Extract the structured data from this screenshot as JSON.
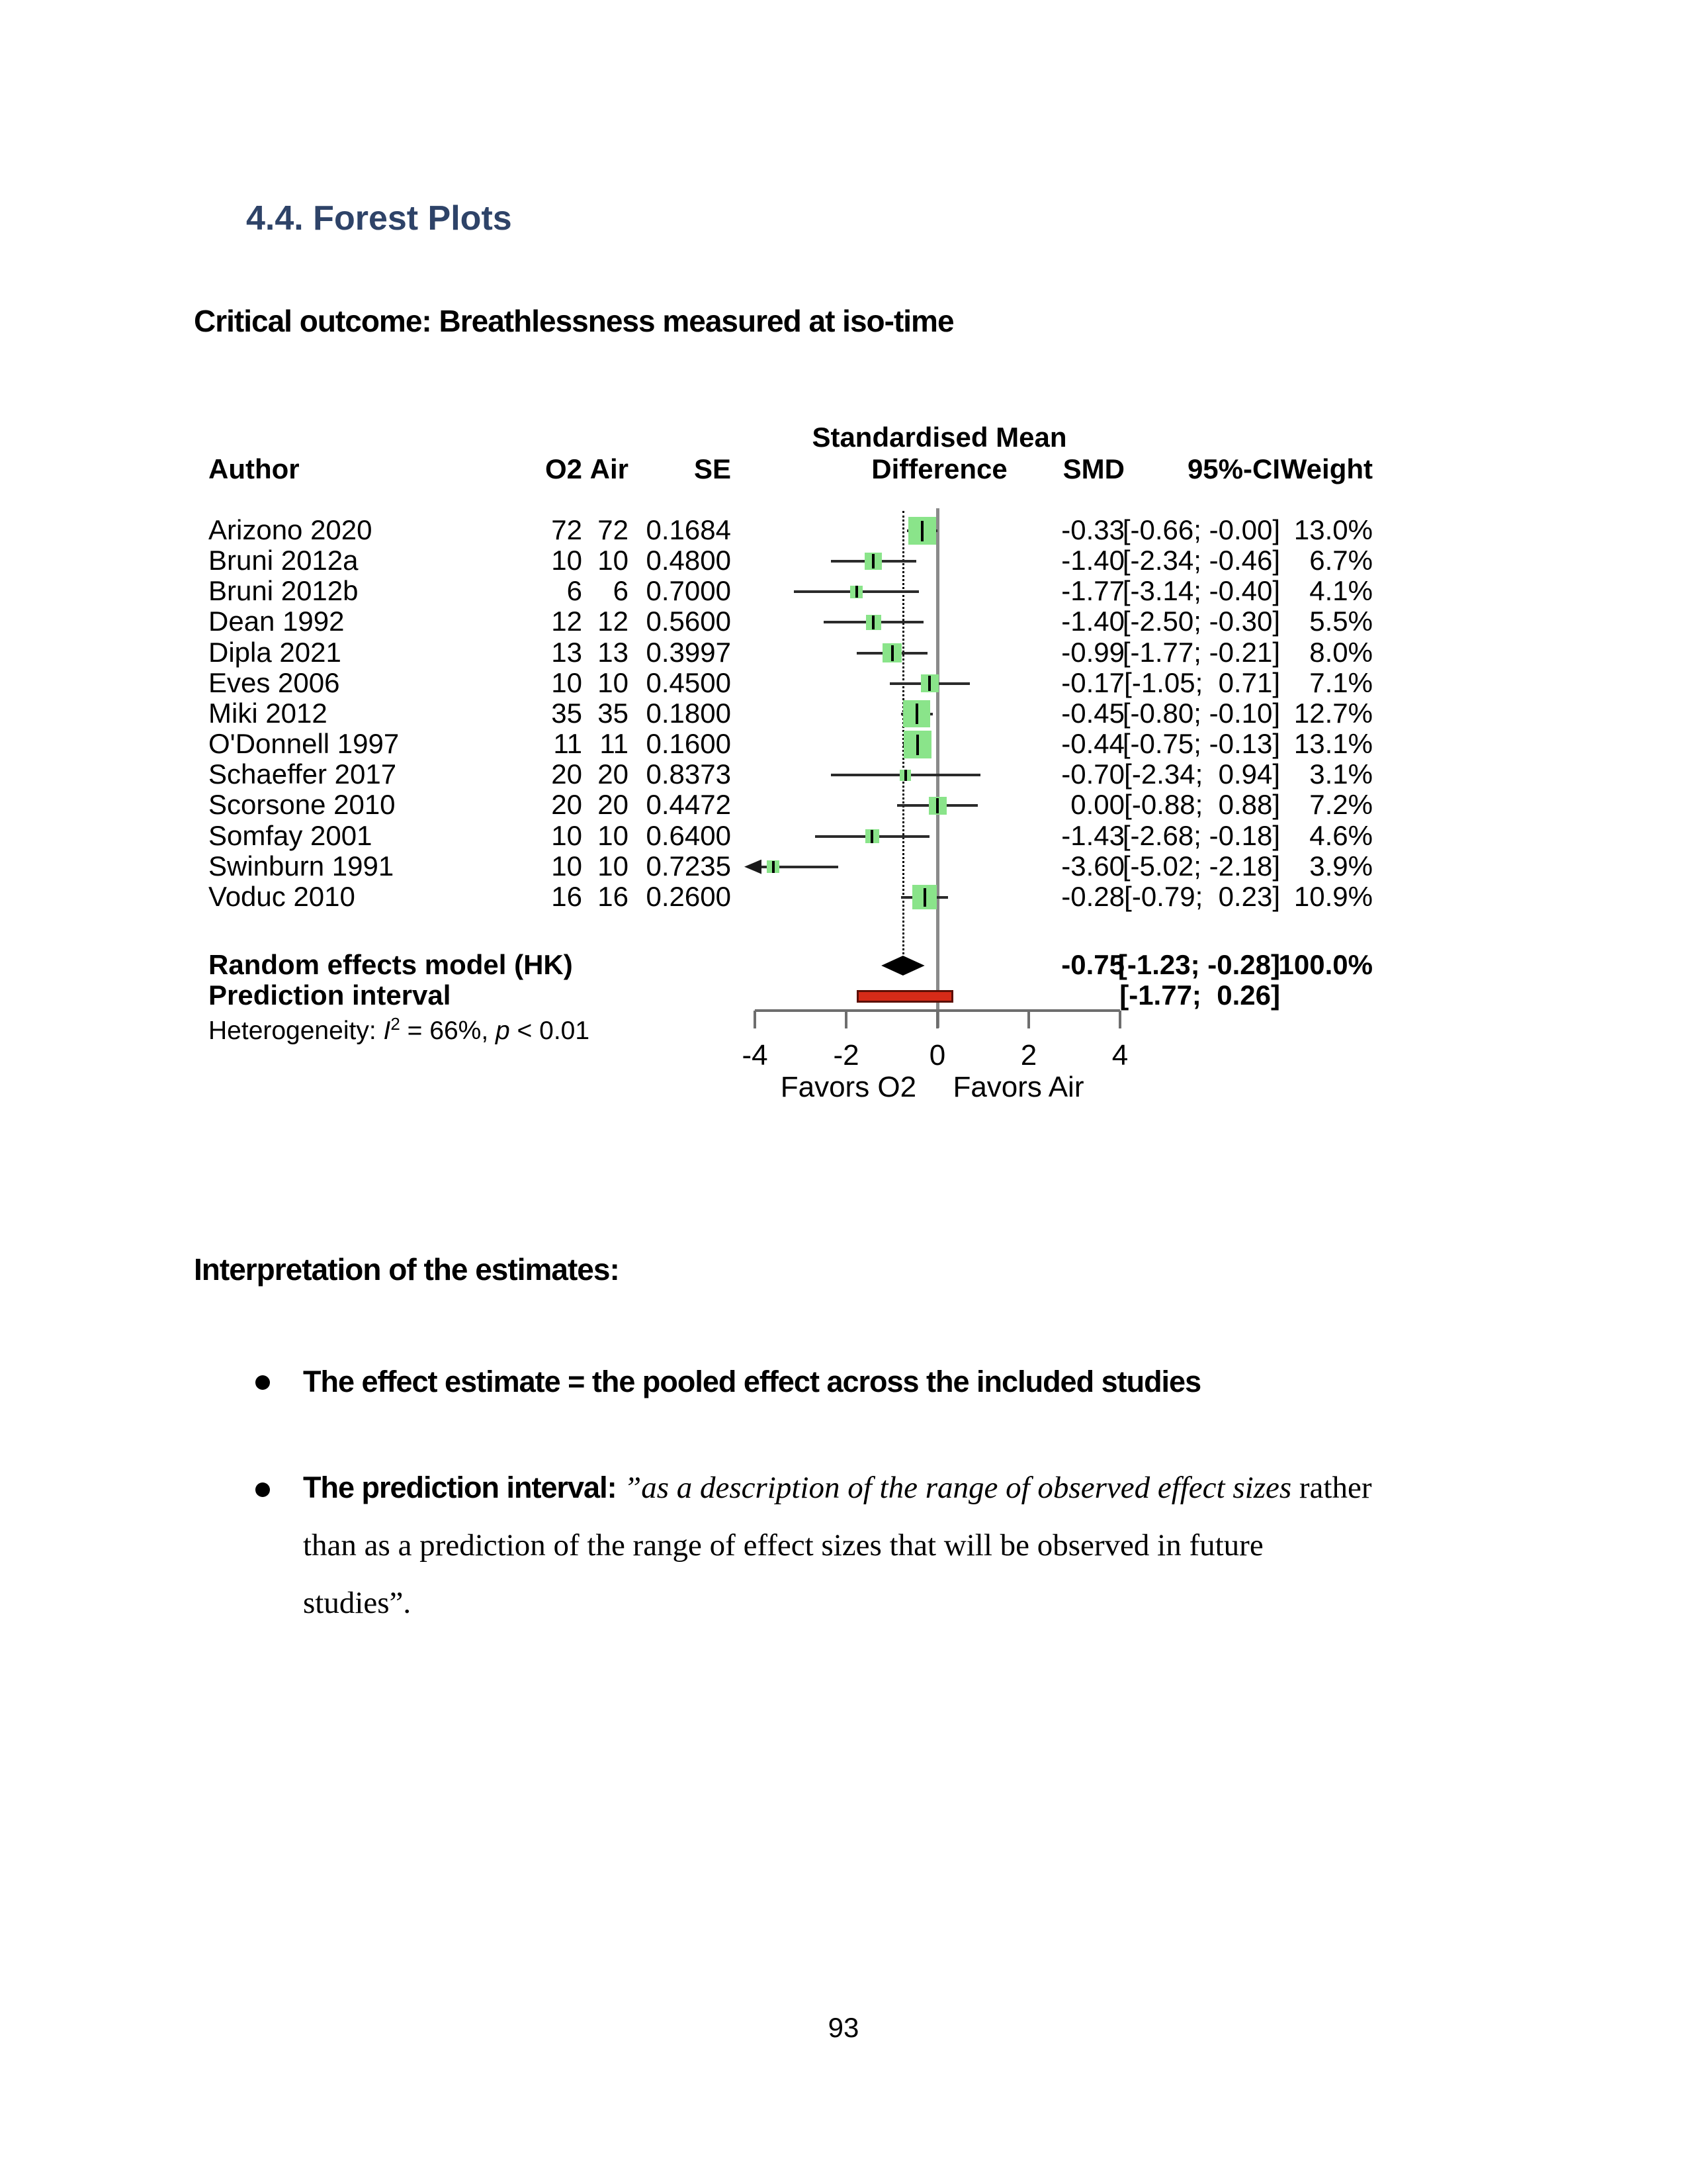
{
  "page": {
    "section_heading": "4.4. Forest Plots",
    "outcome_heading": "Critical outcome: Breathlessness measured at iso-time",
    "interpretation_heading": "Interpretation of the estimates:",
    "bullet1_text": "The effect estimate = the pooled effect across the included studies",
    "bullet2_bold": "The prediction interval: ",
    "bullet2_italic": "”as a description of the range of observed effect sizes",
    "bullet2_tail": " rather",
    "bullet2_line2": "than as a prediction of the range of effect sizes that will be observed in future",
    "bullet2_line3": "studies”.",
    "page_number": "93"
  },
  "chart_data": {
    "type": "forest",
    "title": "Standardised Mean Difference",
    "header": {
      "author": "Author",
      "o2": "O2",
      "air": "Air",
      "se": "SE",
      "effect_line1": "Standardised Mean",
      "effect_line2": "Difference",
      "smd": "SMD",
      "ci": "95%-CI",
      "weight": "Weight"
    },
    "studies": [
      {
        "author": "Arizono 2020",
        "o2": "72",
        "air": "72",
        "se": "0.1684",
        "smd": -0.33,
        "lo": -0.66,
        "hi": 0.0,
        "weight": 13.0,
        "smd_label": "-0.33",
        "ci_label": "[-0.66; -0.00]",
        "weight_label": "13.0%"
      },
      {
        "author": "Bruni 2012a",
        "o2": "10",
        "air": "10",
        "se": "0.4800",
        "smd": -1.4,
        "lo": -2.34,
        "hi": -0.46,
        "weight": 6.7,
        "smd_label": "-1.40",
        "ci_label": "[-2.34; -0.46]",
        "weight_label": "6.7%"
      },
      {
        "author": "Bruni 2012b",
        "o2": "6",
        "air": "6",
        "se": "0.7000",
        "smd": -1.77,
        "lo": -3.14,
        "hi": -0.4,
        "weight": 4.1,
        "smd_label": "-1.77",
        "ci_label": "[-3.14; -0.40]",
        "weight_label": "4.1%"
      },
      {
        "author": "Dean 1992",
        "o2": "12",
        "air": "12",
        "se": "0.5600",
        "smd": -1.4,
        "lo": -2.5,
        "hi": -0.3,
        "weight": 5.5,
        "smd_label": "-1.40",
        "ci_label": "[-2.50; -0.30]",
        "weight_label": "5.5%"
      },
      {
        "author": "Dipla 2021",
        "o2": "13",
        "air": "13",
        "se": "0.3997",
        "smd": -0.99,
        "lo": -1.77,
        "hi": -0.21,
        "weight": 8.0,
        "smd_label": "-0.99",
        "ci_label": "[-1.77; -0.21]",
        "weight_label": "8.0%"
      },
      {
        "author": "Eves 2006",
        "o2": "10",
        "air": "10",
        "se": "0.4500",
        "smd": -0.17,
        "lo": -1.05,
        "hi": 0.71,
        "weight": 7.1,
        "smd_label": "-0.17",
        "ci_label": "[-1.05;  0.71]",
        "weight_label": "7.1%"
      },
      {
        "author": "Miki 2012",
        "o2": "35",
        "air": "35",
        "se": "0.1800",
        "smd": -0.45,
        "lo": -0.8,
        "hi": -0.1,
        "weight": 12.7,
        "smd_label": "-0.45",
        "ci_label": "[-0.80; -0.10]",
        "weight_label": "12.7%"
      },
      {
        "author": "O'Donnell 1997",
        "o2": "11",
        "air": "11",
        "se": "0.1600",
        "smd": -0.44,
        "lo": -0.75,
        "hi": -0.13,
        "weight": 13.1,
        "smd_label": "-0.44",
        "ci_label": "[-0.75; -0.13]",
        "weight_label": "13.1%"
      },
      {
        "author": "Schaeffer 2017",
        "o2": "20",
        "air": "20",
        "se": "0.8373",
        "smd": -0.7,
        "lo": -2.34,
        "hi": 0.94,
        "weight": 3.1,
        "smd_label": "-0.70",
        "ci_label": "[-2.34;  0.94]",
        "weight_label": "3.1%"
      },
      {
        "author": "Scorsone 2010",
        "o2": "20",
        "air": "20",
        "se": "0.4472",
        "smd": 0.0,
        "lo": -0.88,
        "hi": 0.88,
        "weight": 7.2,
        "smd_label": "0.00",
        "ci_label": "[-0.88;  0.88]",
        "weight_label": "7.2%"
      },
      {
        "author": "Somfay 2001",
        "o2": "10",
        "air": "10",
        "se": "0.6400",
        "smd": -1.43,
        "lo": -2.68,
        "hi": -0.18,
        "weight": 4.6,
        "smd_label": "-1.43",
        "ci_label": "[-2.68; -0.18]",
        "weight_label": "4.6%"
      },
      {
        "author": "Swinburn 1991",
        "o2": "10",
        "air": "10",
        "se": "0.7235",
        "smd": -3.6,
        "lo": -5.02,
        "hi": -2.18,
        "weight": 3.9,
        "smd_label": "-3.60",
        "ci_label": "[-5.02; -2.18]",
        "weight_label": "3.9%"
      },
      {
        "author": "Voduc 2010",
        "o2": "16",
        "air": "16",
        "se": "0.2600",
        "smd": -0.28,
        "lo": -0.79,
        "hi": 0.23,
        "weight": 10.9,
        "smd_label": "-0.28",
        "ci_label": "[-0.79;  0.23]",
        "weight_label": "10.9%"
      }
    ],
    "summary": {
      "label": "Random effects model (HK)",
      "smd": -0.75,
      "lo": -1.23,
      "hi": -0.28,
      "smd_label": "-0.75",
      "ci_label": "[-1.23; -0.28]",
      "weight_label": "100.0%"
    },
    "prediction": {
      "label": "Prediction interval",
      "lo": -1.77,
      "hi": 0.26,
      "ci_label": "[-1.77;  0.26]"
    },
    "heterogeneity": {
      "prefix": "Heterogeneity: ",
      "i_symbol": "I",
      "i_sup": "2",
      "mid": " = 66%, ",
      "p_symbol": "p",
      "tail": " < 0.01"
    },
    "axis": {
      "xlim": [
        -4,
        4
      ],
      "ticks": [
        -4,
        -2,
        0,
        2,
        4
      ],
      "tick_labels": [
        "-4",
        "-2",
        "0",
        "2",
        "4"
      ],
      "ref_line": 0,
      "pooled_line": -0.75,
      "favors_left": "Favors O2",
      "favors_right": "Favors Air"
    },
    "colors": {
      "square_fill": "#8ae48a",
      "prediction_bar": "#d62b18",
      "prediction_border": "#5c0f05",
      "ref_line_gray": "#8a8a8a",
      "axis_gray": "#6e6e6e",
      "heading_navy": "#2e4368"
    }
  }
}
